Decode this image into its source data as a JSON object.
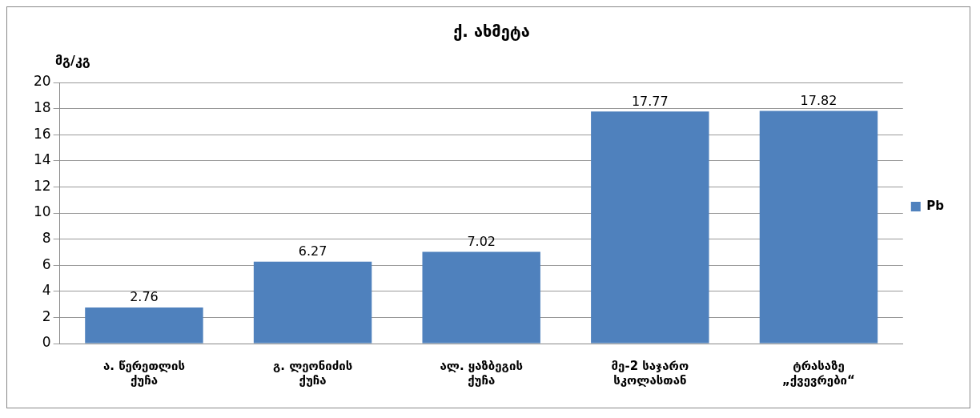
{
  "chart_data": {
    "type": "bar",
    "title": "ქ. ახმეტა",
    "ylabel": "მგ/კგ",
    "categories": [
      "ა. წერეთლის\nქუჩა",
      "გ. ლეონიძის\nქუჩა",
      "ალ. ყაზბეგის\nქუჩა",
      "მე-2 საჯარო\nსკოლასთან",
      "ტრასაზე\n„ქვევრები“"
    ],
    "series": [
      {
        "name": "Pb",
        "color": "#4f81bd",
        "values": [
          2.76,
          6.27,
          7.02,
          17.77,
          17.82
        ]
      }
    ],
    "ylim": [
      0,
      20
    ],
    "yticks": [
      0,
      2,
      4,
      6,
      8,
      10,
      12,
      14,
      16,
      18,
      20
    ],
    "grid": "y",
    "legend": "right",
    "data_labels": true
  }
}
